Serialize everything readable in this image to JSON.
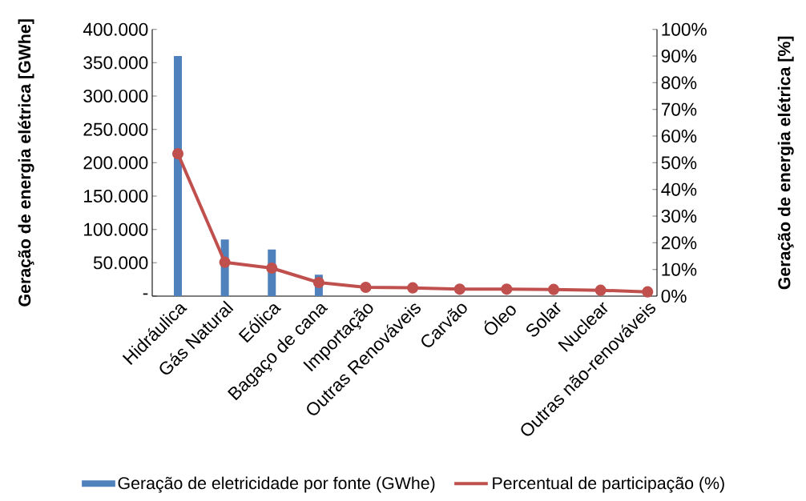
{
  "chart_data": {
    "type": "bar",
    "categories": [
      "Hidráulica",
      "Gás Natural",
      "Eólica",
      "Bagaço de cana",
      "Importação",
      "Outras Renováveis",
      "Carvão",
      "Óleo",
      "Solar",
      "Nuclear",
      "Outras não-renováveis"
    ],
    "ylabel": "Geração de energia elétrica [GWhe]",
    "y2label": "Geração de energia elétrica [%]",
    "series": [
      {
        "name": "Geração de eletricidade por fonte (GWhe)",
        "color": "#4f81bd",
        "values": [
          360000,
          85000,
          70000,
          32000,
          null,
          null,
          null,
          null,
          null,
          null,
          null
        ]
      },
      {
        "name": "Percentual de participação (%)",
        "type": "line",
        "axis": "y2",
        "color": "#c0504d",
        "marker": "circle",
        "line_style": "solid",
        "values": [
          53.4,
          12.7,
          10.5,
          5.1,
          3.3,
          3.1,
          2.6,
          2.6,
          2.5,
          2.2,
          1.6
        ]
      }
    ],
    "ylim": [
      0,
      400000
    ],
    "yticks": [
      {
        "value": 0,
        "label": "-"
      },
      {
        "value": 50000,
        "label": "50.000"
      },
      {
        "value": 100000,
        "label": "100.000"
      },
      {
        "value": 150000,
        "label": "150.000"
      },
      {
        "value": 200000,
        "label": "200.000"
      },
      {
        "value": 250000,
        "label": "250.000"
      },
      {
        "value": 300000,
        "label": "300.000"
      },
      {
        "value": 350000,
        "label": "350.000"
      },
      {
        "value": 400000,
        "label": "400.000"
      }
    ],
    "y2lim": [
      0,
      100
    ],
    "y2ticks": [
      {
        "value": 0,
        "label": "0%"
      },
      {
        "value": 10,
        "label": "10%"
      },
      {
        "value": 20,
        "label": "20%"
      },
      {
        "value": 30,
        "label": "30%"
      },
      {
        "value": 40,
        "label": "40%"
      },
      {
        "value": 50,
        "label": "50%"
      },
      {
        "value": 60,
        "label": "60%"
      },
      {
        "value": 70,
        "label": "70%"
      },
      {
        "value": 80,
        "label": "80%"
      },
      {
        "value": 90,
        "label": "90%"
      },
      {
        "value": 100,
        "label": "100%"
      }
    ],
    "grid": false,
    "legend": "bottom"
  }
}
